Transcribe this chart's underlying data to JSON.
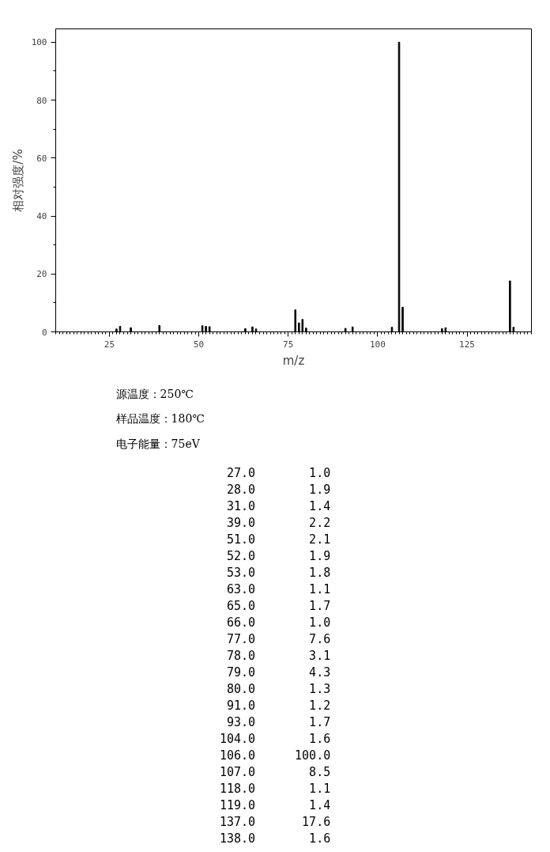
{
  "chart_data": [
    {
      "type": "bar",
      "xlabel": "m/z",
      "ylabel": "相对强度/%",
      "x": [
        27.0,
        28.0,
        31.0,
        39.0,
        51.0,
        52.0,
        53.0,
        63.0,
        65.0,
        66.0,
        77.0,
        78.0,
        79.0,
        80.0,
        91.0,
        93.0,
        104.0,
        106.0,
        107.0,
        118.0,
        119.0,
        137.0,
        138.0
      ],
      "series": [
        {
          "color": "#000000",
          "values": [
            1.0,
            1.9,
            1.4,
            2.2,
            2.1,
            1.9,
            1.8,
            1.1,
            1.7,
            1.0,
            7.6,
            3.1,
            4.3,
            1.3,
            1.2,
            1.7,
            1.6,
            100.0,
            8.5,
            1.1,
            1.4,
            17.6,
            1.6
          ]
        }
      ],
      "xlim": [
        10,
        143
      ],
      "xticks": [
        25,
        50,
        75,
        100,
        125
      ],
      "ylim": [
        0,
        104.6
      ],
      "yticks": [
        0,
        20,
        40,
        60,
        80,
        100
      ],
      "grid": false
    },
    {
      "type": "other",
      "annotations": [
        "源温度：250℃",
        "样品温度：180℃",
        "电子能量：75eV",
        "27.0",
        "1.0",
        "28.0",
        "1.9",
        "31.0",
        "1.4",
        "39.0",
        "2.2",
        "51.0",
        "2.1",
        "52.0",
        "1.9",
        "53.0",
        "1.8",
        "63.0",
        "1.1",
        "65.0",
        "1.7",
        "66.0",
        "1.0",
        "77.0",
        "7.6",
        "78.0",
        "3.1",
        "79.0",
        "4.3",
        "80.0",
        "1.3",
        "91.0",
        "1.2",
        "93.0",
        "1.7",
        "104.0",
        "1.6",
        "106.0",
        "100.0",
        "107.0",
        "8.5",
        "118.0",
        "1.1",
        "119.0",
        "1.4",
        "137.0",
        "17.6",
        "138.0",
        "1.6"
      ]
    }
  ]
}
